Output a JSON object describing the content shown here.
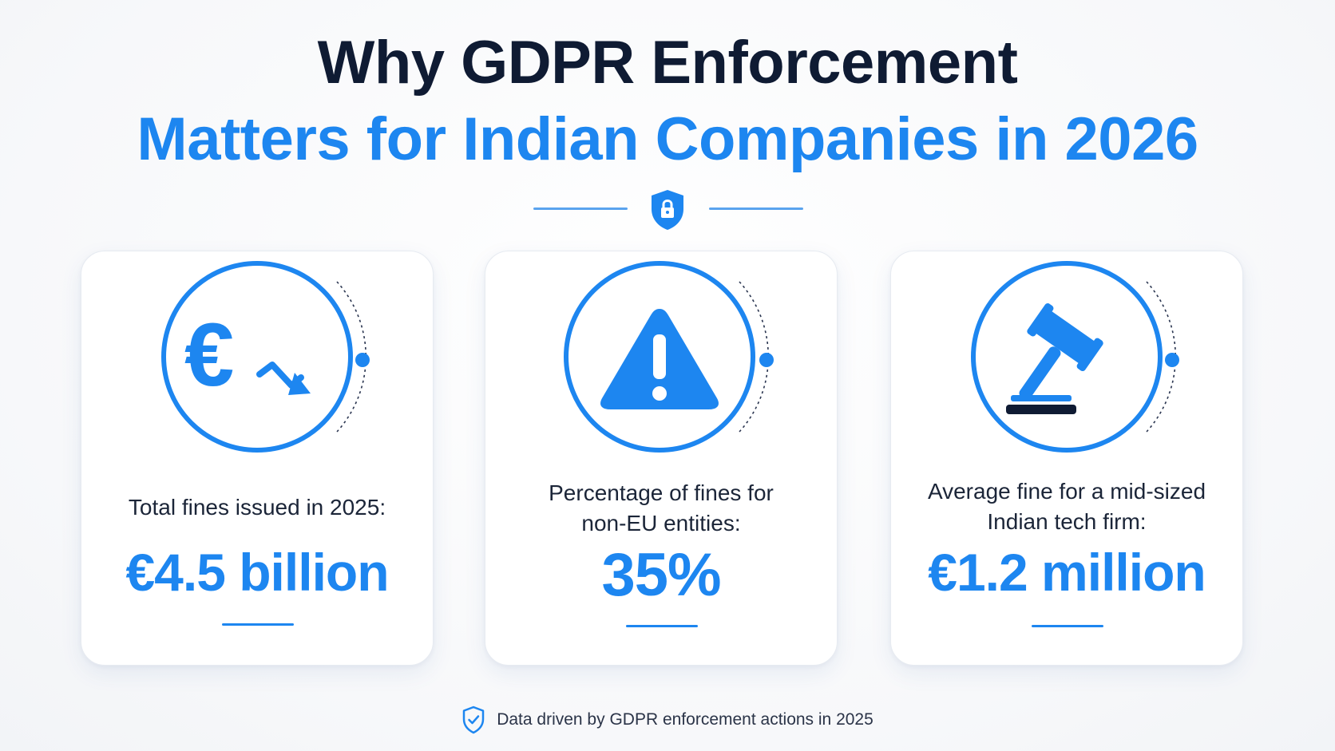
{
  "title": {
    "line1": "Why GDPR Enforcement",
    "line2": "Matters for Indian Companies in 2026"
  },
  "divider": {
    "icon": "shield-lock-icon"
  },
  "stats": [
    {
      "icon": "euro-down-icon",
      "label_line1": "Total fines issued in 2025:",
      "label_line2": "",
      "value": "€4.5 billion"
    },
    {
      "icon": "warning-triangle-icon",
      "label_line1": "Percentage of fines for",
      "label_line2": "non-EU entities:",
      "value": "35%"
    },
    {
      "icon": "gavel-icon",
      "label_line1": "Average fine for a mid-sized",
      "label_line2": "Indian tech firm:",
      "value": "€1.2 million"
    }
  ],
  "footer": {
    "icon": "shield-check-icon",
    "text": "Data driven by GDPR enforcement actions in 2025"
  },
  "colors": {
    "accent": "#1d86f0",
    "dark": "#0f1b33"
  }
}
